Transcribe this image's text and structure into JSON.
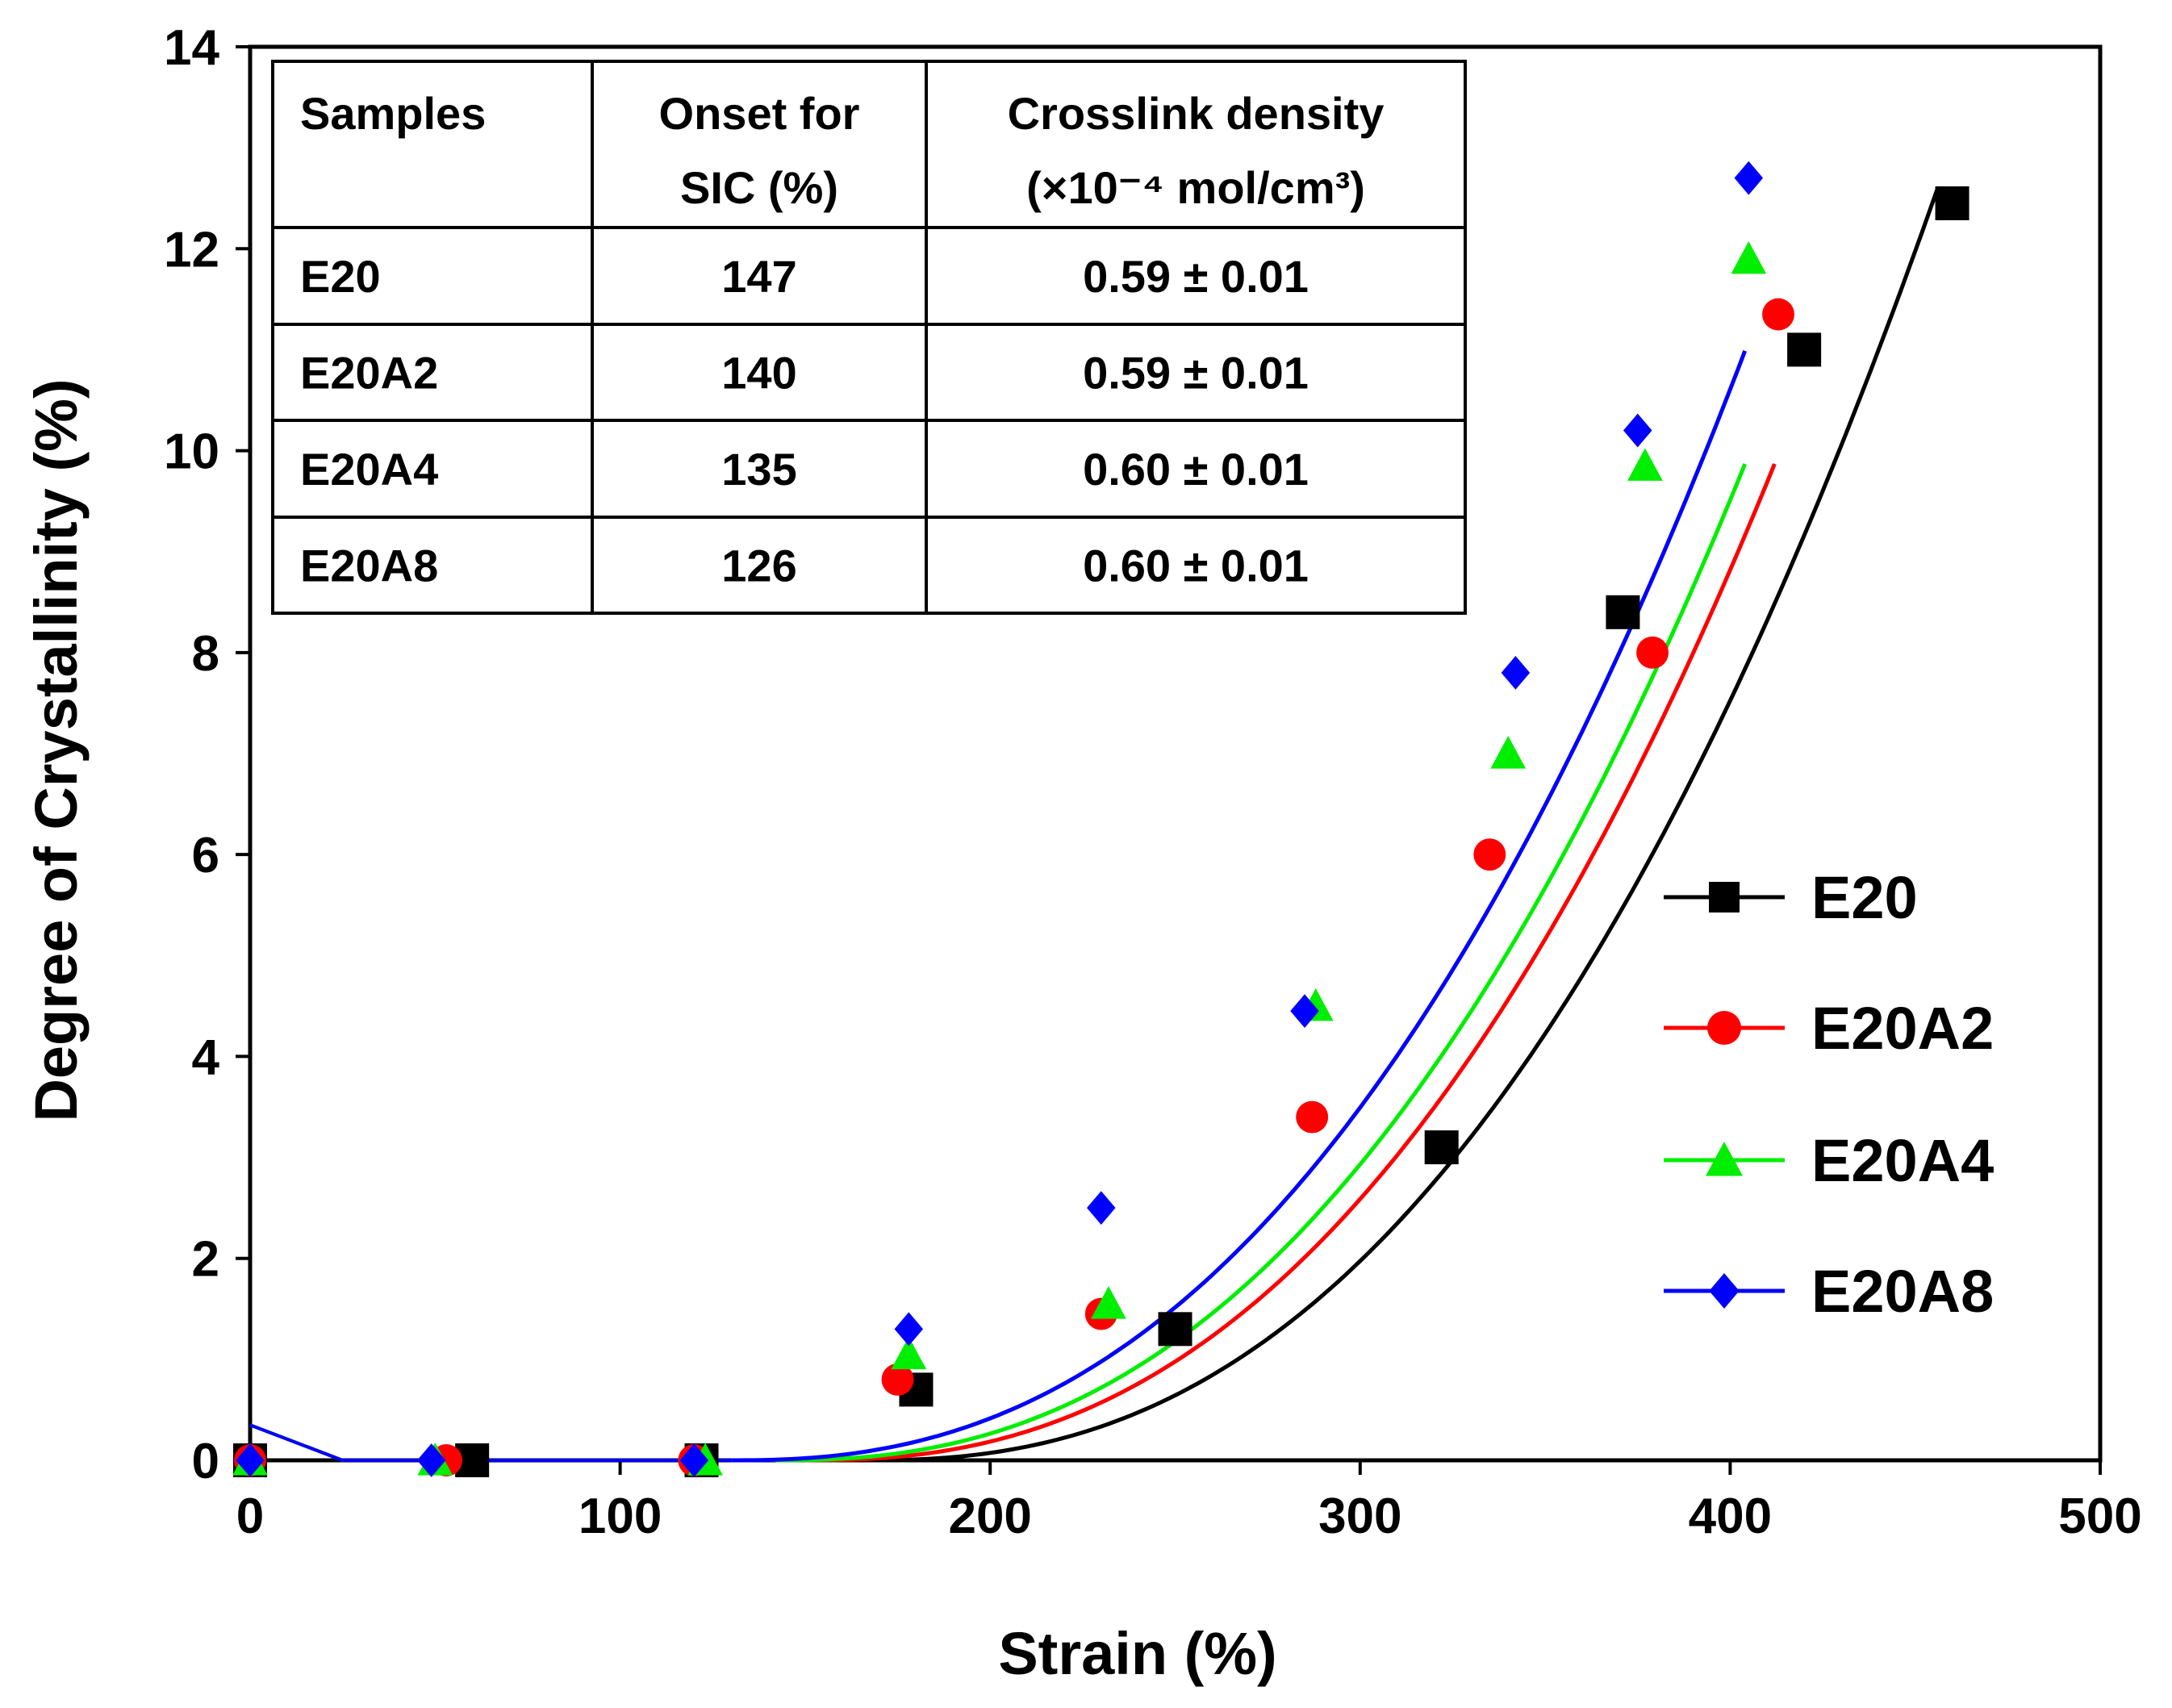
{
  "chart_data": {
    "type": "scatter",
    "xlabel": "Strain (%)",
    "ylabel": "Degree of Crystallinity (%)",
    "xlim": [
      0,
      500
    ],
    "ylim": [
      0,
      14
    ],
    "xticks": [
      "0",
      "100",
      "200",
      "300",
      "400",
      "500"
    ],
    "yticks": [
      "0",
      "2",
      "4",
      "6",
      "8",
      "10",
      "12",
      "14"
    ],
    "series": [
      {
        "name": "E20",
        "color": "#000000",
        "marker": "square",
        "points": [
          [
            0,
            0
          ],
          [
            60,
            0
          ],
          [
            122,
            0
          ],
          [
            180,
            0.7
          ],
          [
            250,
            1.3
          ],
          [
            322,
            3.1
          ],
          [
            371,
            8.4
          ],
          [
            420,
            11
          ],
          [
            460,
            12.45
          ]
        ],
        "fit": {
          "onset": 166,
          "coef": 1.55e-05,
          "power": 2.4,
          "start": 166,
          "end": 457
        }
      },
      {
        "name": "E20A2",
        "color": "#ff0000",
        "marker": "circle",
        "points": [
          [
            0,
            0
          ],
          [
            53,
            0
          ],
          [
            120,
            0
          ],
          [
            175,
            0.8
          ],
          [
            230,
            1.45
          ],
          [
            287,
            3.4
          ],
          [
            335,
            6.0
          ],
          [
            379,
            8.0
          ],
          [
            413,
            11.35
          ]
        ],
        "fit": {
          "onset": 150,
          "coef": 1.55e-05,
          "power": 2.4,
          "start": 150,
          "end": 413
        }
      },
      {
        "name": "E20A4",
        "color": "#00ee00",
        "marker": "triangle",
        "points": [
          [
            0,
            0
          ],
          [
            50,
            0
          ],
          [
            123,
            0
          ],
          [
            178,
            1.05
          ],
          [
            232,
            1.55
          ],
          [
            288,
            4.5
          ],
          [
            340,
            7.0
          ],
          [
            377,
            9.85
          ],
          [
            405,
            11.9
          ]
        ],
        "fit": {
          "onset": 142,
          "coef": 1.55e-05,
          "power": 2.4,
          "start": 142,
          "end": 405
        }
      },
      {
        "name": "E20A8",
        "color": "#0000ff",
        "marker": "diamond",
        "points": [
          [
            0,
            0
          ],
          [
            49,
            0
          ],
          [
            120,
            0
          ],
          [
            178,
            1.3
          ],
          [
            230,
            2.5
          ],
          [
            285,
            4.45
          ],
          [
            342,
            7.8
          ],
          [
            375,
            10.2
          ],
          [
            405,
            12.7
          ]
        ],
        "fit": {
          "onset": 130,
          "coef": 1.55e-05,
          "power": 2.4,
          "start": 130,
          "end": 405
        }
      }
    ],
    "legend": {
      "position": "right-center"
    },
    "inset_table": {
      "headers": [
        [
          "Samples"
        ],
        [
          "Onset for",
          "SIC (%)"
        ],
        [
          "Crosslink density",
          "(×10⁻⁴ mol/cm³)"
        ]
      ],
      "rows": [
        [
          "E20",
          "147",
          "0.59 ± 0.01"
        ],
        [
          "E20A2",
          "140",
          "0.59 ± 0.01"
        ],
        [
          "E20A4",
          "135",
          "0.60 ± 0.01"
        ],
        [
          "E20A8",
          "126",
          "0.60 ± 0.01"
        ]
      ]
    }
  }
}
